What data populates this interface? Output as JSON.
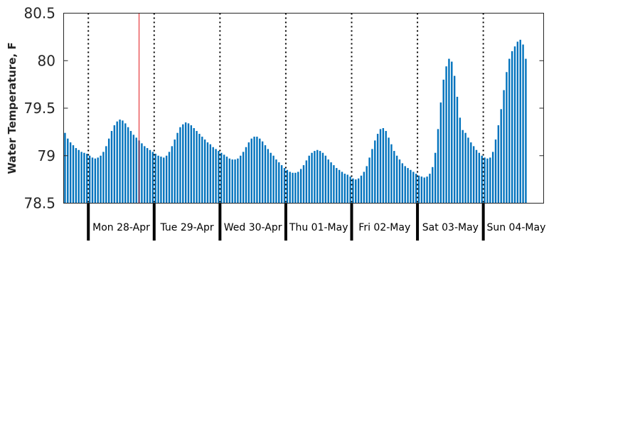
{
  "chart_data": {
    "type": "bar",
    "title": "",
    "xlabel": "",
    "ylabel": "Water Temperature, F",
    "ylim": [
      78.5,
      80.5
    ],
    "yticks": [
      {
        "value": 80.5,
        "label": "80.5"
      },
      {
        "value": 80,
        "label": "80"
      },
      {
        "value": 79.5,
        "label": "79.5"
      },
      {
        "value": 79,
        "label": "79"
      },
      {
        "value": 78.5,
        "label": "78.5"
      }
    ],
    "x_unit": "hours since window start (hourly readings)",
    "x_range_hours": [
      0,
      175
    ],
    "grid": false,
    "bar_color": "#0072BD",
    "day_divider_style": "dotted",
    "day_divider_hours": [
      9,
      33,
      57,
      81,
      105,
      129,
      153
    ],
    "day_labels": [
      "Mon 28-Apr",
      "Tue 29-Apr",
      "Wed 30-Apr",
      "Thu 01-May",
      "Fri 02-May",
      "Sat 03-May",
      "Sun 04-May"
    ],
    "current_time_marker": {
      "hour": 27.5,
      "color": "#e31a1c"
    },
    "values": [
      79.24,
      79.18,
      79.14,
      79.11,
      79.08,
      79.06,
      79.04,
      79.03,
      79.02,
      79.0,
      78.98,
      78.97,
      78.98,
      79.0,
      79.04,
      79.1,
      79.18,
      79.26,
      79.32,
      79.36,
      79.38,
      79.37,
      79.34,
      79.3,
      79.26,
      79.22,
      79.19,
      79.16,
      79.13,
      79.1,
      79.08,
      79.06,
      79.04,
      79.02,
      79.0,
      78.99,
      78.98,
      79.0,
      79.04,
      79.1,
      79.17,
      79.24,
      79.3,
      79.33,
      79.35,
      79.34,
      79.32,
      79.29,
      79.26,
      79.23,
      79.2,
      79.17,
      79.14,
      79.12,
      79.09,
      79.07,
      79.05,
      79.03,
      79.01,
      78.99,
      78.97,
      78.96,
      78.96,
      78.97,
      79.0,
      79.04,
      79.09,
      79.14,
      79.18,
      79.2,
      79.2,
      79.18,
      79.15,
      79.11,
      79.07,
      79.03,
      79.0,
      78.96,
      78.93,
      78.9,
      78.87,
      78.85,
      78.83,
      78.82,
      78.82,
      78.83,
      78.86,
      78.9,
      78.95,
      79.0,
      79.03,
      79.05,
      79.06,
      79.05,
      79.03,
      79.0,
      78.96,
      78.93,
      78.9,
      78.87,
      78.85,
      78.83,
      78.81,
      78.8,
      78.78,
      78.76,
      78.75,
      78.76,
      78.79,
      78.83,
      78.89,
      78.98,
      79.07,
      79.16,
      79.23,
      79.28,
      79.29,
      79.26,
      79.19,
      79.12,
      79.05,
      79.0,
      78.96,
      78.92,
      78.89,
      78.87,
      78.85,
      78.83,
      78.81,
      78.79,
      78.78,
      78.77,
      78.78,
      78.81,
      78.88,
      79.03,
      79.28,
      79.56,
      79.8,
      79.94,
      80.02,
      79.99,
      79.84,
      79.62,
      79.4,
      79.27,
      79.24,
      79.19,
      79.14,
      79.1,
      79.06,
      79.03,
      79.0,
      78.98,
      78.97,
      78.98,
      79.04,
      79.17,
      79.32,
      79.49,
      79.69,
      79.88,
      80.02,
      80.1,
      80.15,
      80.2,
      80.22,
      80.17,
      80.02
    ]
  }
}
